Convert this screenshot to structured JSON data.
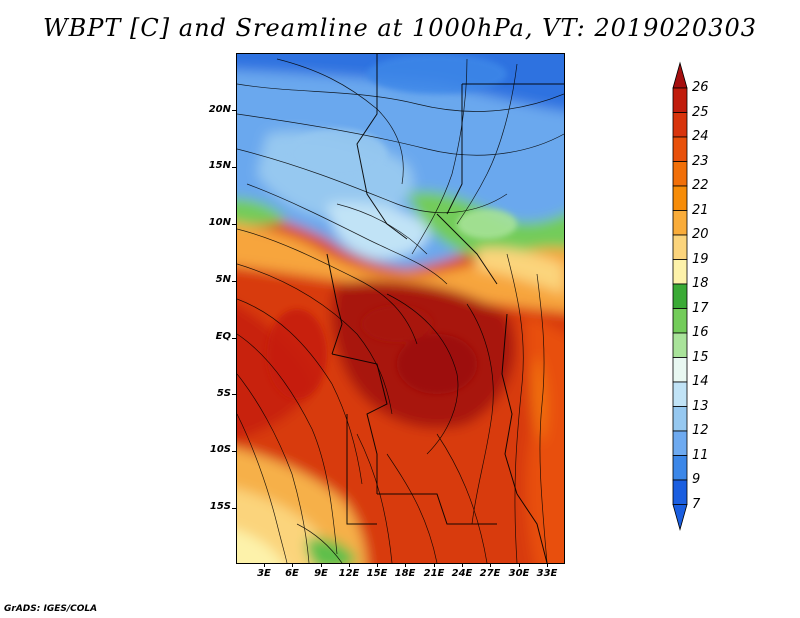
{
  "title": "WBPT [C] and Sreamline at 1000hPa, VT: 2019020303",
  "footer": "GrADS: IGES/COLA",
  "lat_labels": [
    "20N",
    "15N",
    "10N",
    "5N",
    "EQ",
    "5S",
    "10S",
    "15S"
  ],
  "lon_labels": [
    "3E",
    "6E",
    "9E",
    "12E",
    "15E",
    "18E",
    "21E",
    "24E",
    "27E",
    "30E",
    "33E"
  ],
  "colorbar": {
    "labels": [
      "26",
      "25",
      "24",
      "23",
      "22",
      "21",
      "20",
      "19",
      "18",
      "17",
      "16",
      "15",
      "14",
      "13",
      "12",
      "11",
      "9",
      "7"
    ],
    "colors": [
      "#a50f0f",
      "#c01c0c",
      "#d8340c",
      "#e8500a",
      "#f16f08",
      "#f68c08",
      "#f9ac3a",
      "#fbd47c",
      "#fdf2aa",
      "#3aaa35",
      "#73cc5a",
      "#a9e39a",
      "#e9f8f2",
      "#c1e3f6",
      "#96c8f0",
      "#6eaaf0",
      "#3c87e8",
      "#1a5ee0"
    ]
  }
}
